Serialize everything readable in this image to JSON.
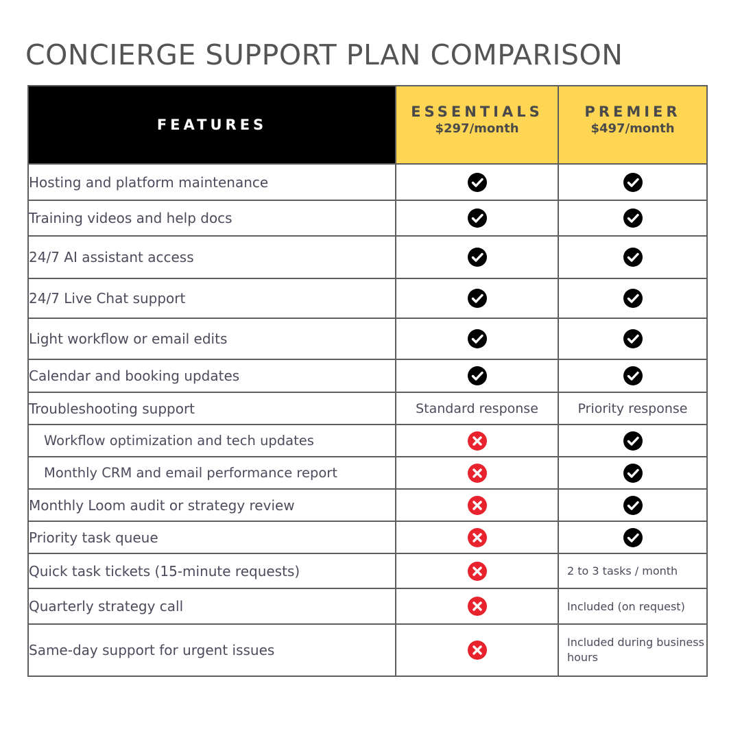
{
  "title": "CONCIERGE SUPPORT PLAN COMPARISON",
  "colors": {
    "header_black": "#000000",
    "plan_header_yellow": "#fed653",
    "check_black": "#000000",
    "cross_red": "#e8232e",
    "border_gray": "#5e5e5e",
    "text_slate": "#4b4b5c"
  },
  "header": {
    "features_label": "FEATURES",
    "plans": [
      {
        "name": "ESSENTIALS",
        "price": "$297/month"
      },
      {
        "name": "PREMIER",
        "price": "$497/month"
      }
    ]
  },
  "rows": [
    {
      "feature": "Hosting and platform maintenance",
      "essentials": {
        "type": "check"
      },
      "premier": {
        "type": "check"
      }
    },
    {
      "feature": "Training videos and help docs",
      "essentials": {
        "type": "check"
      },
      "premier": {
        "type": "check"
      }
    },
    {
      "feature": "24/7 AI assistant access",
      "essentials": {
        "type": "check"
      },
      "premier": {
        "type": "check"
      }
    },
    {
      "feature": "24/7 Live Chat support",
      "essentials": {
        "type": "check"
      },
      "premier": {
        "type": "check"
      }
    },
    {
      "feature": "Light workflow or email edits",
      "essentials": {
        "type": "check"
      },
      "premier": {
        "type": "check"
      }
    },
    {
      "feature": "Calendar and booking updates",
      "essentials": {
        "type": "check"
      },
      "premier": {
        "type": "check"
      }
    },
    {
      "feature": "Troubleshooting support",
      "essentials": {
        "type": "text",
        "text": "Standard response"
      },
      "premier": {
        "type": "text",
        "text": "Priority response"
      }
    },
    {
      "feature": "Workflow optimization and tech updates",
      "essentials": {
        "type": "cross"
      },
      "premier": {
        "type": "check"
      }
    },
    {
      "feature": "Monthly CRM and email performance report",
      "essentials": {
        "type": "cross"
      },
      "premier": {
        "type": "check"
      }
    },
    {
      "feature": "Monthly Loom audit or strategy review",
      "essentials": {
        "type": "cross"
      },
      "premier": {
        "type": "check"
      }
    },
    {
      "feature": "Priority task queue",
      "essentials": {
        "type": "cross"
      },
      "premier": {
        "type": "check"
      }
    },
    {
      "feature": "Quick task tickets (15-minute requests)",
      "essentials": {
        "type": "cross"
      },
      "premier": {
        "type": "text",
        "text": "2 to 3 tasks / month"
      }
    },
    {
      "feature": "Quarterly strategy call",
      "essentials": {
        "type": "cross"
      },
      "premier": {
        "type": "text",
        "text": "Included (on request)"
      }
    },
    {
      "feature": "Same-day support for urgent issues",
      "essentials": {
        "type": "cross"
      },
      "premier": {
        "type": "text",
        "text": "Included during business hours"
      }
    }
  ]
}
